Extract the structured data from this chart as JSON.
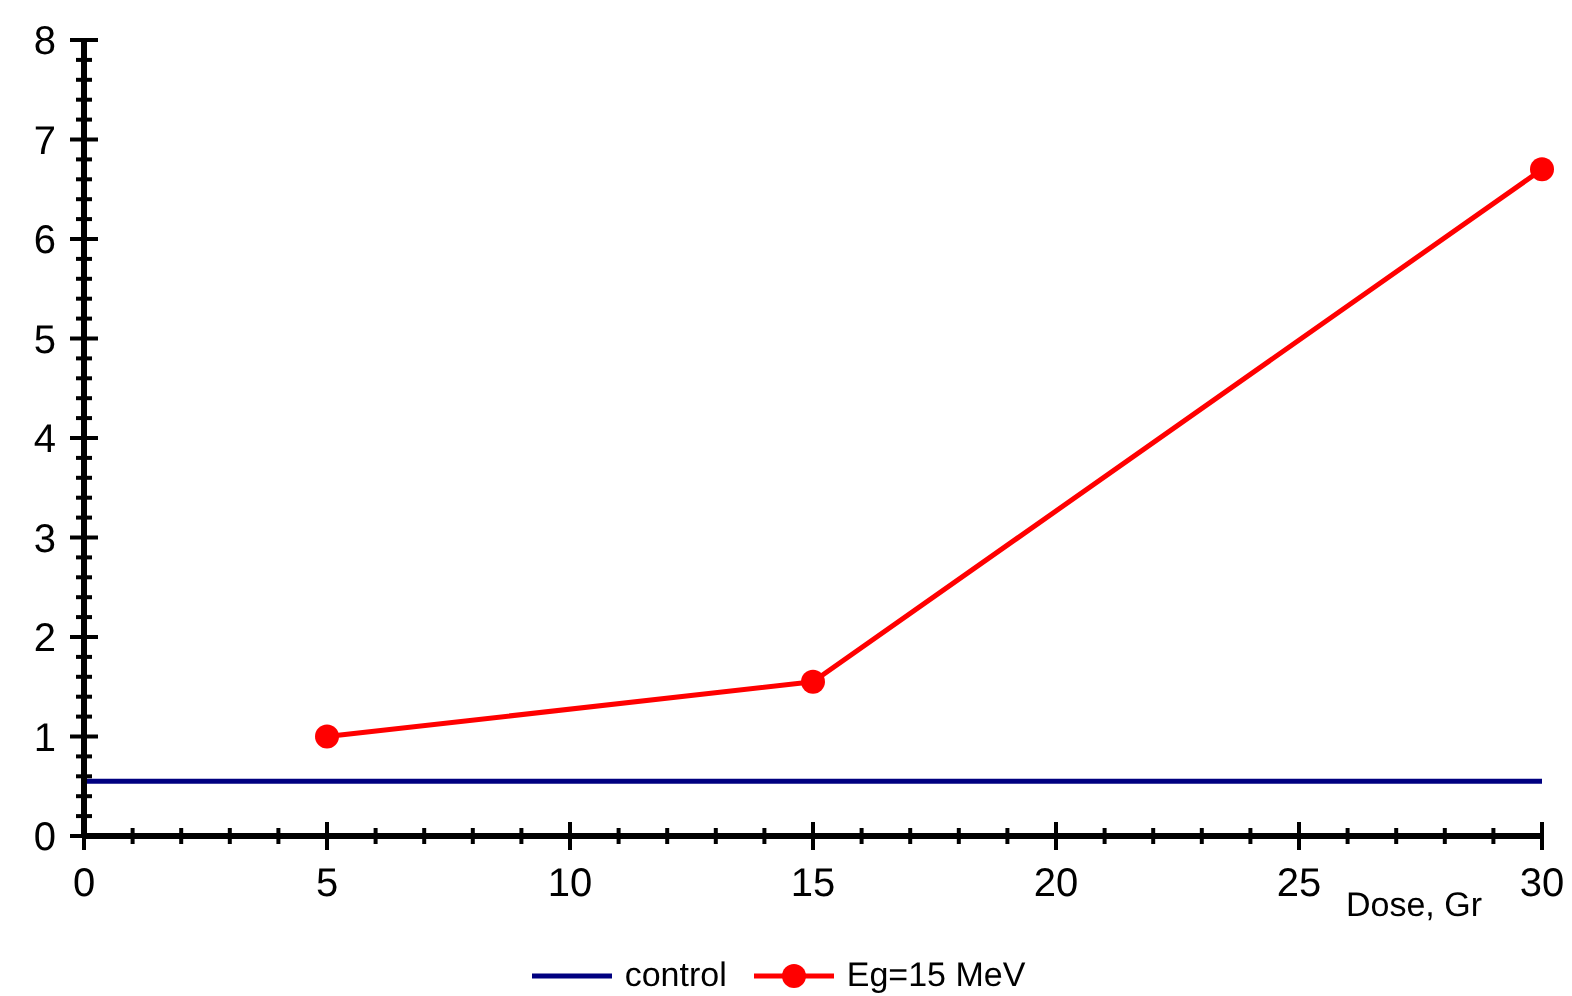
{
  "chart_data": {
    "type": "line",
    "xlabel": "Dose, Gr",
    "xlim": [
      0,
      30
    ],
    "ylim": [
      0,
      8
    ],
    "xticks": [
      0,
      {
        "value": 1,
        "label": null
      },
      {
        "value": 2,
        "label": null
      },
      {
        "value": 3,
        "label": null
      },
      {
        "value": 4,
        "label": null
      },
      5,
      {
        "value": 6,
        "label": null
      },
      {
        "value": 7,
        "label": null
      },
      {
        "value": 8,
        "label": null
      },
      {
        "value": 9,
        "label": null
      },
      10,
      {
        "value": 11,
        "label": null
      },
      {
        "value": 12,
        "label": null
      },
      {
        "value": 13,
        "label": null
      },
      {
        "value": 14,
        "label": null
      },
      15,
      {
        "value": 16,
        "label": null
      },
      {
        "value": 17,
        "label": null
      },
      {
        "value": 18,
        "label": null
      },
      {
        "value": 19,
        "label": null
      },
      20,
      {
        "value": 21,
        "label": null
      },
      {
        "value": 22,
        "label": null
      },
      {
        "value": 23,
        "label": null
      },
      {
        "value": 24,
        "label": null
      },
      25,
      {
        "value": 26,
        "label": null
      },
      {
        "value": 27,
        "label": null
      },
      {
        "value": 28,
        "label": null
      },
      {
        "value": 29,
        "label": null
      },
      30
    ],
    "yticks": [
      0,
      {
        "value": 0.2,
        "label": null
      },
      {
        "value": 0.4,
        "label": null
      },
      {
        "value": 0.6,
        "label": null
      },
      {
        "value": 0.8,
        "label": null
      },
      1,
      {
        "value": 1.2,
        "label": null
      },
      {
        "value": 1.4,
        "label": null
      },
      {
        "value": 1.6,
        "label": null
      },
      {
        "value": 1.8,
        "label": null
      },
      2,
      {
        "value": 2.2,
        "label": null
      },
      {
        "value": 2.4,
        "label": null
      },
      {
        "value": 2.6,
        "label": null
      },
      {
        "value": 2.8,
        "label": null
      },
      3,
      {
        "value": 3.2,
        "label": null
      },
      {
        "value": 3.4,
        "label": null
      },
      {
        "value": 3.6,
        "label": null
      },
      {
        "value": 3.8,
        "label": null
      },
      4,
      {
        "value": 4.2,
        "label": null
      },
      {
        "value": 4.4,
        "label": null
      },
      {
        "value": 4.6,
        "label": null
      },
      {
        "value": 4.8,
        "label": null
      },
      5,
      {
        "value": 5.2,
        "label": null
      },
      {
        "value": 5.4,
        "label": null
      },
      {
        "value": 5.6,
        "label": null
      },
      {
        "value": 5.8,
        "label": null
      },
      6,
      {
        "value": 6.2,
        "label": null
      },
      {
        "value": 6.4,
        "label": null
      },
      {
        "value": 6.6,
        "label": null
      },
      {
        "value": 6.8,
        "label": null
      },
      7,
      {
        "value": 7.2,
        "label": null
      },
      {
        "value": 7.4,
        "label": null
      },
      {
        "value": 7.6,
        "label": null
      },
      {
        "value": 7.8,
        "label": null
      },
      8
    ],
    "grid": false,
    "legend": "bottom",
    "series": [
      {
        "name": "control",
        "color": "#000080",
        "x": [
          0,
          30
        ],
        "values": [
          0.55,
          0.55
        ],
        "marker": "none"
      },
      {
        "name": "Eg=15 MeV",
        "color": "#ff0000",
        "x": [
          5,
          15,
          30
        ],
        "values": [
          1.0,
          1.55,
          6.7
        ],
        "marker": "circle"
      }
    ]
  }
}
